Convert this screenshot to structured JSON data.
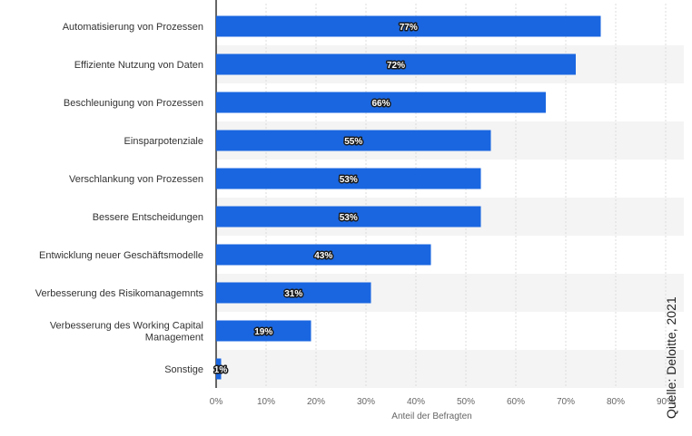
{
  "chart_data": {
    "type": "bar",
    "orientation": "horizontal",
    "categories": [
      "Automatisierung von Prozessen",
      "Effiziente Nutzung von Daten",
      "Beschleunigung von Prozessen",
      "Einsparpotenziale",
      "Verschlankung von Prozessen",
      "Bessere Entscheidungen",
      "Entwicklung neuer Geschäftsmodelle",
      "Verbesserung des Risikomanagemnts",
      "Verbesserung des Working Capital Management",
      "Sonstige"
    ],
    "values": [
      77,
      72,
      66,
      55,
      53,
      53,
      43,
      31,
      19,
      1
    ],
    "value_labels": [
      "77%",
      "72%",
      "66%",
      "55%",
      "53%",
      "53%",
      "43%",
      "31%",
      "19%",
      "1%"
    ],
    "xlabel": "Anteil der Befragten",
    "xlim": [
      0,
      90
    ],
    "xticks": [
      "0%",
      "10%",
      "20%",
      "30%",
      "40%",
      "50%",
      "60%",
      "70%",
      "80%",
      "90%"
    ],
    "bar_color": "#1a66e0",
    "band_color": "#f4f4f4",
    "grid": true
  },
  "source_note": "Quelle: Deloitte, 2021"
}
